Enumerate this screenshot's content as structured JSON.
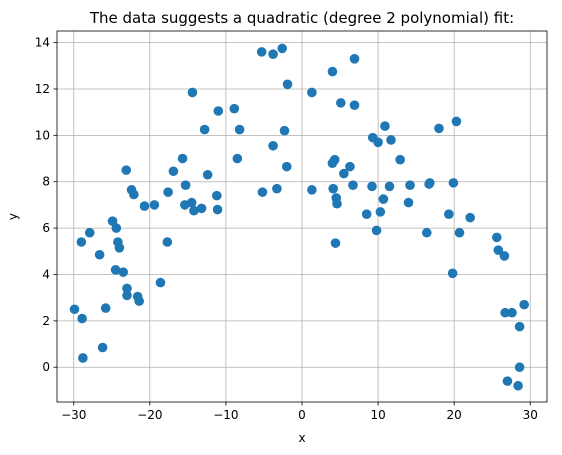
{
  "chart_data": {
    "type": "scatter",
    "title": "The data suggests a quadratic (degree 2 polynomial) fit:",
    "xlabel": "x",
    "ylabel": "y",
    "xlim": [
      -32.2,
      32.2
    ],
    "ylim": [
      -1.5,
      14.5
    ],
    "xticks": [
      -30,
      -20,
      -10,
      0,
      10,
      20,
      30
    ],
    "yticks": [
      0,
      2,
      4,
      6,
      8,
      10,
      12,
      14
    ],
    "grid": true,
    "marker_color": "#1f77b4",
    "points": [
      [
        -29.9,
        2.5
      ],
      [
        -29.0,
        5.4
      ],
      [
        -28.9,
        2.1
      ],
      [
        -28.8,
        0.4
      ],
      [
        -27.9,
        5.8
      ],
      [
        -26.6,
        4.85
      ],
      [
        -26.2,
        0.85
      ],
      [
        -25.8,
        2.55
      ],
      [
        -24.9,
        6.3
      ],
      [
        -24.5,
        4.2
      ],
      [
        -24.4,
        6.0
      ],
      [
        -24.2,
        5.4
      ],
      [
        -24.0,
        5.15
      ],
      [
        -23.5,
        4.1
      ],
      [
        -23.1,
        8.5
      ],
      [
        -23.0,
        3.4
      ],
      [
        -23.0,
        3.1
      ],
      [
        -22.4,
        7.65
      ],
      [
        -22.1,
        7.45
      ],
      [
        -21.6,
        3.05
      ],
      [
        -21.4,
        2.85
      ],
      [
        -20.7,
        6.95
      ],
      [
        -19.4,
        7.0
      ],
      [
        -18.6,
        3.65
      ],
      [
        -17.7,
        5.4
      ],
      [
        -17.6,
        7.55
      ],
      [
        -16.9,
        8.45
      ],
      [
        -15.7,
        9.0
      ],
      [
        -15.4,
        7.0
      ],
      [
        -15.3,
        7.85
      ],
      [
        -14.5,
        7.1
      ],
      [
        -14.4,
        11.85
      ],
      [
        -14.2,
        6.75
      ],
      [
        -13.2,
        6.85
      ],
      [
        -12.8,
        10.25
      ],
      [
        -12.4,
        8.3
      ],
      [
        -11.2,
        7.4
      ],
      [
        -11.1,
        6.8
      ],
      [
        -11.0,
        11.05
      ],
      [
        -8.9,
        11.15
      ],
      [
        -8.5,
        9.0
      ],
      [
        -8.2,
        10.25
      ],
      [
        -5.3,
        13.6
      ],
      [
        -5.2,
        7.55
      ],
      [
        -3.8,
        13.5
      ],
      [
        -3.8,
        9.55
      ],
      [
        -3.3,
        7.7
      ],
      [
        -2.6,
        13.75
      ],
      [
        -2.3,
        10.2
      ],
      [
        -2.0,
        8.65
      ],
      [
        -1.9,
        12.2
      ],
      [
        1.3,
        11.85
      ],
      [
        1.3,
        7.65
      ],
      [
        4.0,
        12.75
      ],
      [
        4.0,
        8.8
      ],
      [
        4.1,
        7.7
      ],
      [
        4.3,
        8.95
      ],
      [
        4.4,
        5.35
      ],
      [
        4.5,
        7.3
      ],
      [
        4.6,
        7.05
      ],
      [
        5.1,
        11.4
      ],
      [
        5.5,
        8.35
      ],
      [
        6.3,
        8.65
      ],
      [
        6.7,
        7.85
      ],
      [
        6.9,
        11.3
      ],
      [
        6.9,
        13.3
      ],
      [
        8.5,
        6.6
      ],
      [
        9.2,
        7.8
      ],
      [
        9.3,
        9.9
      ],
      [
        9.8,
        5.9
      ],
      [
        10.0,
        9.7
      ],
      [
        10.3,
        6.7
      ],
      [
        10.7,
        7.25
      ],
      [
        10.9,
        10.4
      ],
      [
        11.5,
        7.8
      ],
      [
        11.7,
        9.8
      ],
      [
        12.9,
        8.95
      ],
      [
        14.0,
        7.1
      ],
      [
        14.2,
        7.85
      ],
      [
        16.4,
        5.8
      ],
      [
        16.7,
        7.9
      ],
      [
        16.8,
        7.95
      ],
      [
        18.0,
        10.3
      ],
      [
        19.3,
        6.6
      ],
      [
        19.8,
        4.05
      ],
      [
        19.9,
        7.95
      ],
      [
        20.3,
        10.6
      ],
      [
        20.7,
        5.8
      ],
      [
        22.1,
        6.45
      ],
      [
        25.6,
        5.6
      ],
      [
        25.8,
        5.05
      ],
      [
        26.6,
        4.8
      ],
      [
        26.7,
        2.35
      ],
      [
        27.0,
        -0.6
      ],
      [
        27.6,
        2.35
      ],
      [
        28.4,
        -0.8
      ],
      [
        28.6,
        1.75
      ],
      [
        28.6,
        0.0
      ],
      [
        29.2,
        2.7
      ]
    ]
  }
}
